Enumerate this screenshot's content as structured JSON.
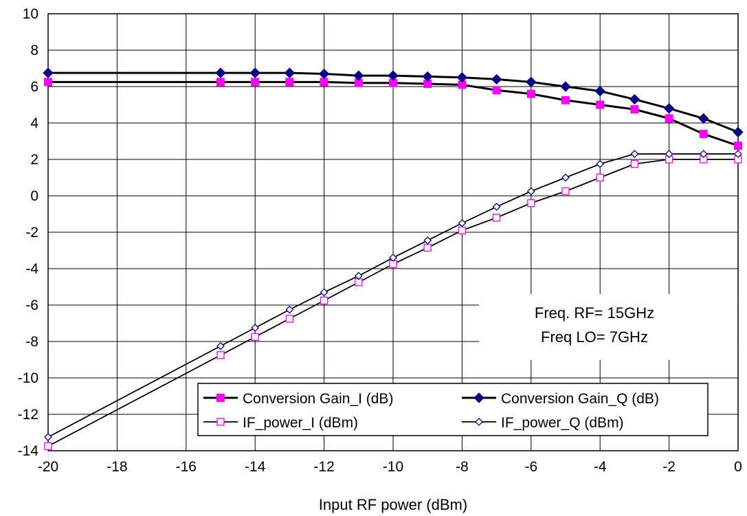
{
  "chart_data": {
    "type": "line",
    "title": "",
    "xlabel": "Input RF power (dBm)",
    "ylabel": "",
    "xlim": [
      -20,
      0
    ],
    "ylim": [
      -14,
      10
    ],
    "grid": true,
    "legend_position": "bottom-right",
    "x_ticks": [
      "-20",
      "-18",
      "-16",
      "-14",
      "-12",
      "-10",
      "-8",
      "-6",
      "-4",
      "-2",
      "0"
    ],
    "y_ticks": [
      "10",
      "8",
      "6",
      "4",
      "2",
      "0",
      "-2",
      "-4",
      "-6",
      "-8",
      "-10",
      "-12",
      "-14"
    ],
    "annotations": [
      "Freq. RF= 15GHz",
      "Freq LO= 7GHz"
    ],
    "series": [
      {
        "name": "Conversion Gain_I (dB)",
        "color": "#ff00ff",
        "marker": "square-filled",
        "line_width": "thick",
        "x": [
          -20,
          -15,
          -14,
          -13,
          -12,
          -11,
          -10,
          -9,
          -8,
          -7,
          -6,
          -5,
          -4,
          -3,
          -2,
          -1,
          0
        ],
        "y": [
          6.25,
          6.25,
          6.25,
          6.25,
          6.25,
          6.2,
          6.2,
          6.15,
          6.1,
          5.8,
          5.6,
          5.25,
          5.0,
          4.75,
          4.25,
          3.4,
          2.75
        ]
      },
      {
        "name": "Conversion Gain_Q (dB)",
        "color": "#00008b",
        "marker": "diamond-filled",
        "line_width": "thick",
        "x": [
          -20,
          -15,
          -14,
          -13,
          -12,
          -11,
          -10,
          -9,
          -8,
          -7,
          -6,
          -5,
          -4,
          -3,
          -2,
          -1,
          0
        ],
        "y": [
          6.75,
          6.75,
          6.75,
          6.75,
          6.7,
          6.6,
          6.6,
          6.55,
          6.5,
          6.4,
          6.25,
          6.0,
          5.75,
          5.3,
          4.8,
          4.25,
          3.5
        ]
      },
      {
        "name": "IF_power_I (dBm)",
        "color": "#ff00ff",
        "marker": "square-open",
        "line_width": "thin",
        "x": [
          -20,
          -15,
          -14,
          -13,
          -12,
          -11,
          -10,
          -9,
          -8,
          -7,
          -6,
          -5,
          -4,
          -3,
          -2,
          -1,
          0
        ],
        "y": [
          -13.75,
          -8.75,
          -7.75,
          -6.75,
          -5.75,
          -4.75,
          -3.75,
          -2.85,
          -1.9,
          -1.2,
          -0.4,
          0.25,
          1.0,
          1.75,
          2.0,
          2.0,
          2.0
        ]
      },
      {
        "name": "IF_power_Q (dBm)",
        "color": "#00008b",
        "marker": "diamond-open",
        "line_width": "thin",
        "x": [
          -20,
          -15,
          -14,
          -13,
          -12,
          -11,
          -10,
          -9,
          -8,
          -7,
          -6,
          -5,
          -4,
          -3,
          -2,
          -1,
          0
        ],
        "y": [
          -13.25,
          -8.25,
          -7.25,
          -6.25,
          -5.3,
          -4.4,
          -3.4,
          -2.45,
          -1.5,
          -0.6,
          0.25,
          1.0,
          1.75,
          2.3,
          2.3,
          2.3,
          2.3
        ]
      }
    ]
  }
}
